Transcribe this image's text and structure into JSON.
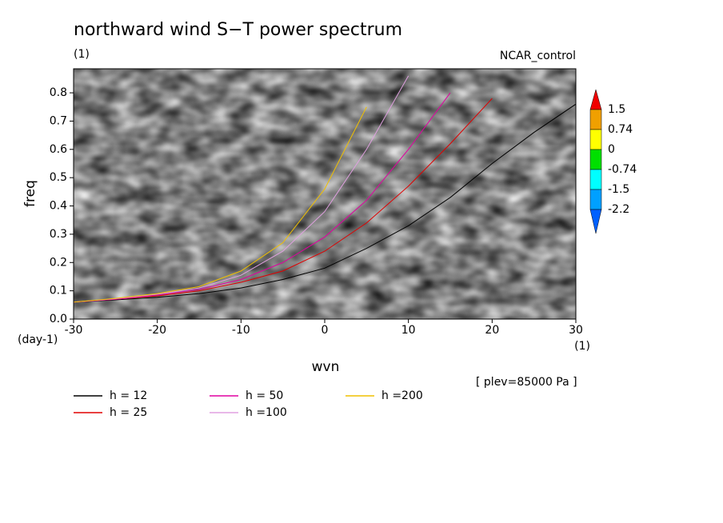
{
  "chart_data": {
    "type": "line",
    "title": "northward wind S−T power spectrum",
    "subtitle": "(1)",
    "run_label": "NCAR_control",
    "x_label": "wvn",
    "x_unit": "(1)",
    "y_label": "freq",
    "y_unit": "(day-1)",
    "note": "[ plev=85000 Pa ]",
    "xlim": [
      -30,
      30
    ],
    "xticks": [
      -30,
      -20,
      -10,
      0,
      10,
      20,
      30
    ],
    "ylim": [
      0,
      0.885
    ],
    "yticks": [
      {
        "value": 0,
        "label": "0.0"
      },
      0.1,
      0.2,
      0.3,
      0.4,
      0.5,
      0.6,
      0.7,
      0.8
    ],
    "x": [
      -30,
      -25,
      -20,
      -15,
      -10,
      -5,
      0,
      5,
      10,
      15,
      20,
      25,
      30
    ],
    "series": [
      {
        "name": "h = 12",
        "color": "#000000",
        "values": [
          0.06,
          0.068,
          0.077,
          0.09,
          0.11,
          0.14,
          0.18,
          0.25,
          0.33,
          0.43,
          0.55,
          0.66,
          0.76
        ]
      },
      {
        "name": "h = 25",
        "color": "#e00000",
        "values": [
          0.06,
          0.07,
          0.082,
          0.1,
          0.13,
          0.17,
          0.24,
          0.34,
          0.47,
          0.62,
          0.78,
          null,
          null
        ]
      },
      {
        "name": "h = 50",
        "color": "#e000a0",
        "values": [
          0.06,
          0.07,
          0.085,
          0.105,
          0.14,
          0.2,
          0.29,
          0.42,
          0.6,
          0.8,
          null,
          null,
          null
        ]
      },
      {
        "name": "h =100",
        "color": "#e0a0e0",
        "values": [
          0.06,
          0.072,
          0.088,
          0.11,
          0.155,
          0.24,
          0.38,
          0.6,
          0.86,
          null,
          null,
          null,
          null
        ]
      },
      {
        "name": "h =200",
        "color": "#f0c000",
        "values": [
          0.06,
          0.073,
          0.09,
          0.115,
          0.17,
          0.27,
          0.46,
          0.75,
          null,
          null,
          null,
          null,
          null
        ]
      }
    ],
    "colorbar": {
      "levels": [
        1.5,
        0.74,
        0,
        -0.74,
        -1.5,
        -2.2
      ],
      "colors": [
        "#f00000",
        "#f0a000",
        "#ffff00",
        "#00e000",
        "#00ffff",
        "#00a0ff",
        "#0060ff"
      ]
    }
  }
}
